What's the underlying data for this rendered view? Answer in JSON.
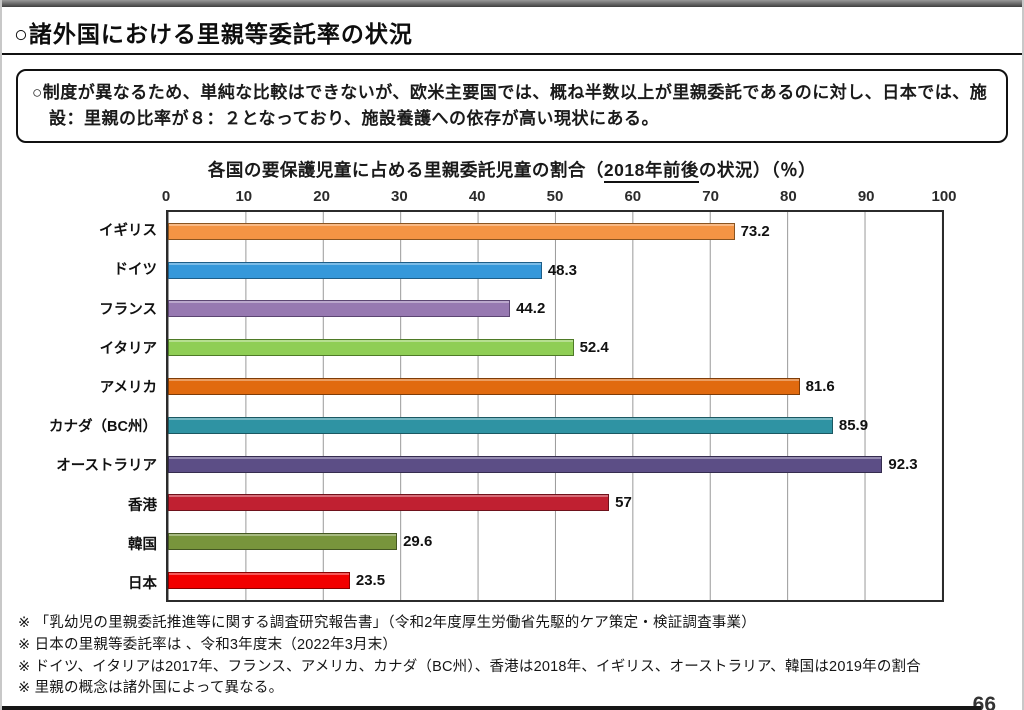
{
  "page": {
    "title": "○諸外国における里親等委託率の状況",
    "page_number": "66"
  },
  "summary_box": {
    "text": "○制度が異なるため、単純な比較はできないが、欧米主要国では、概ね半数以上が里親委託であるのに対し、日本では、施設：里親の比率が８：２となっており、施設養護への依存が高い現状にある。"
  },
  "chart_data": {
    "type": "bar",
    "orientation": "horizontal",
    "title": "各国の要保護児童に占める里親委託児童の割合（2018年前後の状況）（％）",
    "title_parts": {
      "prefix": "各国の要保護児童に占める里親委託児童の割合（",
      "underlined": "2018年前後",
      "suffix": "の状況）（％）"
    },
    "categories": [
      "イギリス",
      "ドイツ",
      "フランス",
      "イタリア",
      "アメリカ",
      "カナダ（BC州）",
      "オーストラリア",
      "香港",
      "韓国",
      "日本"
    ],
    "values": [
      73.2,
      48.3,
      44.2,
      52.4,
      81.6,
      85.9,
      92.3,
      57,
      29.6,
      23.5
    ],
    "value_labels": [
      "73.2",
      "48.3",
      "44.2",
      "52.4",
      "81.6",
      "85.9",
      "92.3",
      "57",
      "29.6",
      "23.5"
    ],
    "bar_colors": [
      {
        "fill": "#F49444",
        "border": "#8a5420"
      },
      {
        "fill": "#3598DA",
        "border": "#1d5e88"
      },
      {
        "fill": "#9779B1",
        "border": "#5c4672"
      },
      {
        "fill": "#8FCE55",
        "border": "#4e7a27"
      },
      {
        "fill": "#E16A0F",
        "border": "#7e3c08"
      },
      {
        "fill": "#2F93A3",
        "border": "#1b5862"
      },
      {
        "fill": "#5C4E86",
        "border": "#352c4f"
      },
      {
        "fill": "#C02031",
        "border": "#6e121c"
      },
      {
        "fill": "#78953C",
        "border": "#445722"
      },
      {
        "fill": "#F20000",
        "border": "#8b0000"
      }
    ],
    "xlim": [
      0,
      100
    ],
    "x_ticks": [
      "0",
      "10",
      "20",
      "30",
      "40",
      "50",
      "60",
      "70",
      "80",
      "90",
      "100"
    ],
    "axis_position": "top",
    "grid": true,
    "gridline_color": "#999999"
  },
  "footnotes": [
    "※ 「乳幼児の里親委託推進等に関する調査研究報告書」（令和2年度厚生労働省先駆的ケア策定・検証調査事業）",
    "※ 日本の里親等委託率は 、令和3年度末（2022年3月末）",
    "※ ドイツ、イタリアは2017年、フランス、アメリカ、カナダ（BC州）、香港は2018年、イギリス、オーストラリア、韓国は2019年の割合",
    "※ 里親の概念は諸外国によって異なる。"
  ]
}
